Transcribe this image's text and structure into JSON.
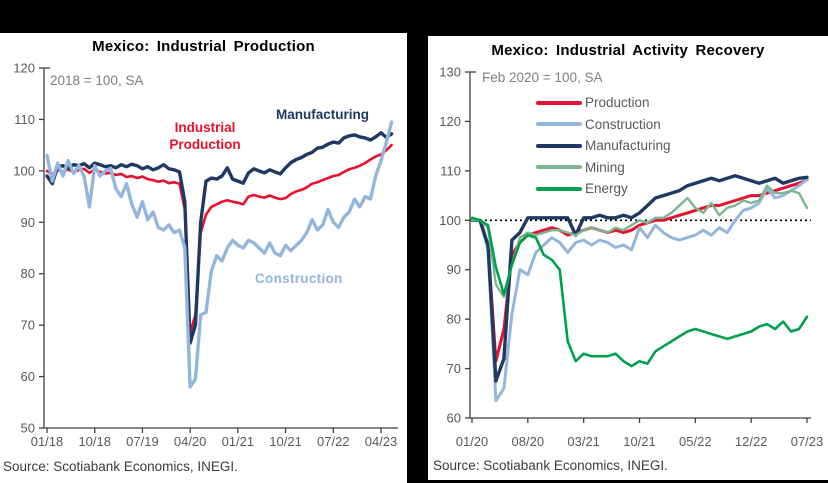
{
  "source_note": "Source: Scotiabank Economics, INEGI.",
  "chart_data": [
    {
      "type": "line",
      "title": "Mexico: Industrial Production",
      "subtitle": "2018 = 100, SA",
      "x_start": "01/18",
      "x_end": "06/23",
      "x_frequency": "monthly",
      "x_tick_labels": [
        "01/18",
        "10/18",
        "07/19",
        "04/20",
        "01/21",
        "10/21",
        "07/22",
        "04/23"
      ],
      "x_tick_indices": [
        0,
        9,
        18,
        27,
        36,
        45,
        54,
        63
      ],
      "ylim": [
        50,
        120
      ],
      "y_ticks": [
        50,
        60,
        70,
        80,
        90,
        100,
        110,
        120
      ],
      "grid": false,
      "legend_position": "inline-labels",
      "inline_labels": [
        {
          "text": "Industrial Production",
          "series": "Industrial Production"
        },
        {
          "text": "Manufacturing",
          "series": "Manufacturing"
        },
        {
          "text": "Construction",
          "series": "Construction"
        }
      ],
      "series": [
        {
          "name": "Industrial Production",
          "color": "#e8112d",
          "width": 2.6,
          "values": [
            100,
            99.3,
            100.2,
            99.8,
            100.3,
            99.7,
            100.2,
            100.4,
            99.6,
            100.3,
            99.8,
            99.5,
            99.6,
            99.2,
            99.4,
            98.8,
            99,
            98.6,
            98.9,
            98.4,
            98.2,
            97.9,
            98.1,
            97.6,
            97.8,
            97.5,
            92.5,
            68.5,
            72,
            88,
            91.5,
            93,
            93.5,
            94,
            94.3,
            94,
            93.8,
            93.5,
            95,
            95.3,
            95,
            94.8,
            95.2,
            94.8,
            94.5,
            94.7,
            95.5,
            96,
            96.3,
            96.8,
            97.5,
            97.8,
            98.2,
            98.6,
            99,
            99.2,
            99.8,
            100.3,
            100.6,
            101,
            101.5,
            102.2,
            102.8,
            103.2,
            104,
            105
          ]
        },
        {
          "name": "Manufacturing",
          "color": "#1f3864",
          "width": 3.4,
          "values": [
            99,
            97.5,
            100.8,
            101,
            100.5,
            101.2,
            101,
            101.4,
            100.6,
            101.5,
            101.2,
            100.8,
            101,
            100.6,
            101.2,
            100.8,
            101.3,
            101,
            100.4,
            100.8,
            100.2,
            100.6,
            101.2,
            100.4,
            100.2,
            99.8,
            94,
            66.5,
            70,
            90,
            98,
            98.6,
            98.4,
            99,
            100.6,
            98.4,
            98,
            97.6,
            99.6,
            100.4,
            100,
            99.6,
            100.2,
            99.8,
            99.4,
            100.6,
            101.6,
            102.2,
            102.6,
            103.2,
            103.6,
            104.4,
            104.6,
            105.2,
            105.6,
            105.4,
            106.4,
            106.8,
            107,
            106.6,
            106.4,
            106,
            106.6,
            107.4,
            106.5,
            107.2
          ]
        },
        {
          "name": "Construction",
          "color": "#94b6dc",
          "width": 3.4,
          "values": [
            103,
            98,
            101.5,
            99,
            102,
            99.5,
            101,
            99,
            93,
            101,
            99,
            100,
            100.5,
            96.5,
            95,
            97.5,
            93.5,
            91,
            94,
            90.5,
            92,
            89,
            88.5,
            89.5,
            88,
            88.5,
            85,
            58,
            59.5,
            72,
            72.5,
            80.5,
            83.5,
            82.5,
            85,
            86.5,
            85.5,
            85,
            86.5,
            86,
            85,
            84,
            86,
            84,
            83.5,
            85.5,
            84.5,
            85.5,
            86.5,
            88,
            90.5,
            88.5,
            89.5,
            92.5,
            90,
            89,
            91,
            92,
            94.5,
            93,
            95,
            94.5,
            99,
            102,
            105.5,
            109.5
          ]
        }
      ]
    },
    {
      "type": "line",
      "title": "Mexico: Industrial Activity Recovery",
      "subtitle": "Feb 2020 = 100, SA",
      "x_start": "01/20",
      "x_end": "07/23",
      "x_frequency": "monthly",
      "x_tick_labels": [
        "01/20",
        "08/20",
        "03/21",
        "10/21",
        "05/22",
        "12/22",
        "07/23"
      ],
      "x_tick_indices": [
        0,
        7,
        14,
        21,
        28,
        35,
        42
      ],
      "ylim": [
        60,
        130
      ],
      "y_ticks": [
        60,
        70,
        80,
        90,
        100,
        110,
        120,
        130
      ],
      "grid": false,
      "reference_line": 100,
      "legend_position": "top-inside",
      "series": [
        {
          "name": "Production",
          "color": "#e8112d",
          "width": 3,
          "values": [
            100,
            100,
            95,
            71.5,
            78,
            93,
            95.5,
            97,
            97.5,
            98,
            98.5,
            98,
            97,
            97.5,
            98,
            98.5,
            98,
            97.5,
            98,
            97.5,
            98,
            99,
            99.5,
            100,
            100,
            100.5,
            101,
            101.5,
            102,
            102.5,
            103,
            103,
            103.5,
            104,
            104.5,
            105,
            105,
            105.5,
            106,
            106.5,
            107,
            107.5,
            108.2
          ]
        },
        {
          "name": "Construction",
          "color": "#94b6dc",
          "width": 3,
          "values": [
            100,
            100,
            94,
            63.5,
            66,
            81,
            90,
            89,
            93.5,
            95,
            96.5,
            95.5,
            93.5,
            95.5,
            96,
            95,
            96,
            95.5,
            94.5,
            95,
            94,
            98.5,
            96.5,
            99,
            97.5,
            96.5,
            96,
            96.5,
            97,
            98,
            97,
            98.5,
            97.5,
            100,
            102,
            102.5,
            103.5,
            106.5,
            104.5,
            105,
            106,
            107,
            108.3
          ]
        },
        {
          "name": "Manufacturing",
          "color": "#1f3864",
          "width": 3.4,
          "values": [
            100,
            100,
            95,
            67.5,
            72,
            96,
            97.5,
            100.5,
            100.5,
            100.5,
            100.5,
            100.5,
            100.5,
            97,
            100.5,
            100.5,
            101,
            100.5,
            100.5,
            101,
            100.5,
            101.5,
            103,
            104.5,
            105,
            105.5,
            106,
            107,
            107.5,
            108,
            108.5,
            108,
            108.5,
            109,
            108.5,
            108,
            107.5,
            108,
            108.5,
            107.5,
            108,
            108.5,
            108.7
          ]
        },
        {
          "name": "Mining",
          "color": "#7ab68f",
          "width": 2.4,
          "values": [
            100,
            100,
            98.5,
            87,
            84.5,
            91,
            96.5,
            97.5,
            97,
            97.5,
            98,
            98,
            97.5,
            97,
            98,
            98.5,
            98,
            97.5,
            98.5,
            98,
            99,
            100,
            99.5,
            100.5,
            100.5,
            101.5,
            103,
            104.5,
            102.5,
            101.5,
            103.5,
            101,
            102.5,
            103,
            104,
            103.5,
            104,
            107,
            105.5,
            105.5,
            106,
            105.5,
            102.5
          ]
        },
        {
          "name": "Energy",
          "color": "#00a04e",
          "width": 2.6,
          "values": [
            100.5,
            100,
            99,
            90.5,
            85,
            91,
            95.5,
            97,
            96.5,
            93,
            92,
            90,
            75.5,
            71.5,
            73,
            72.5,
            72.5,
            72.5,
            73,
            71.5,
            70.5,
            71.5,
            71,
            73.5,
            74.5,
            75.5,
            76.5,
            77.5,
            78,
            77.5,
            77,
            76.5,
            76,
            76.5,
            77,
            77.5,
            78.5,
            79,
            78,
            79.5,
            77.5,
            78,
            80.5
          ]
        }
      ]
    }
  ]
}
